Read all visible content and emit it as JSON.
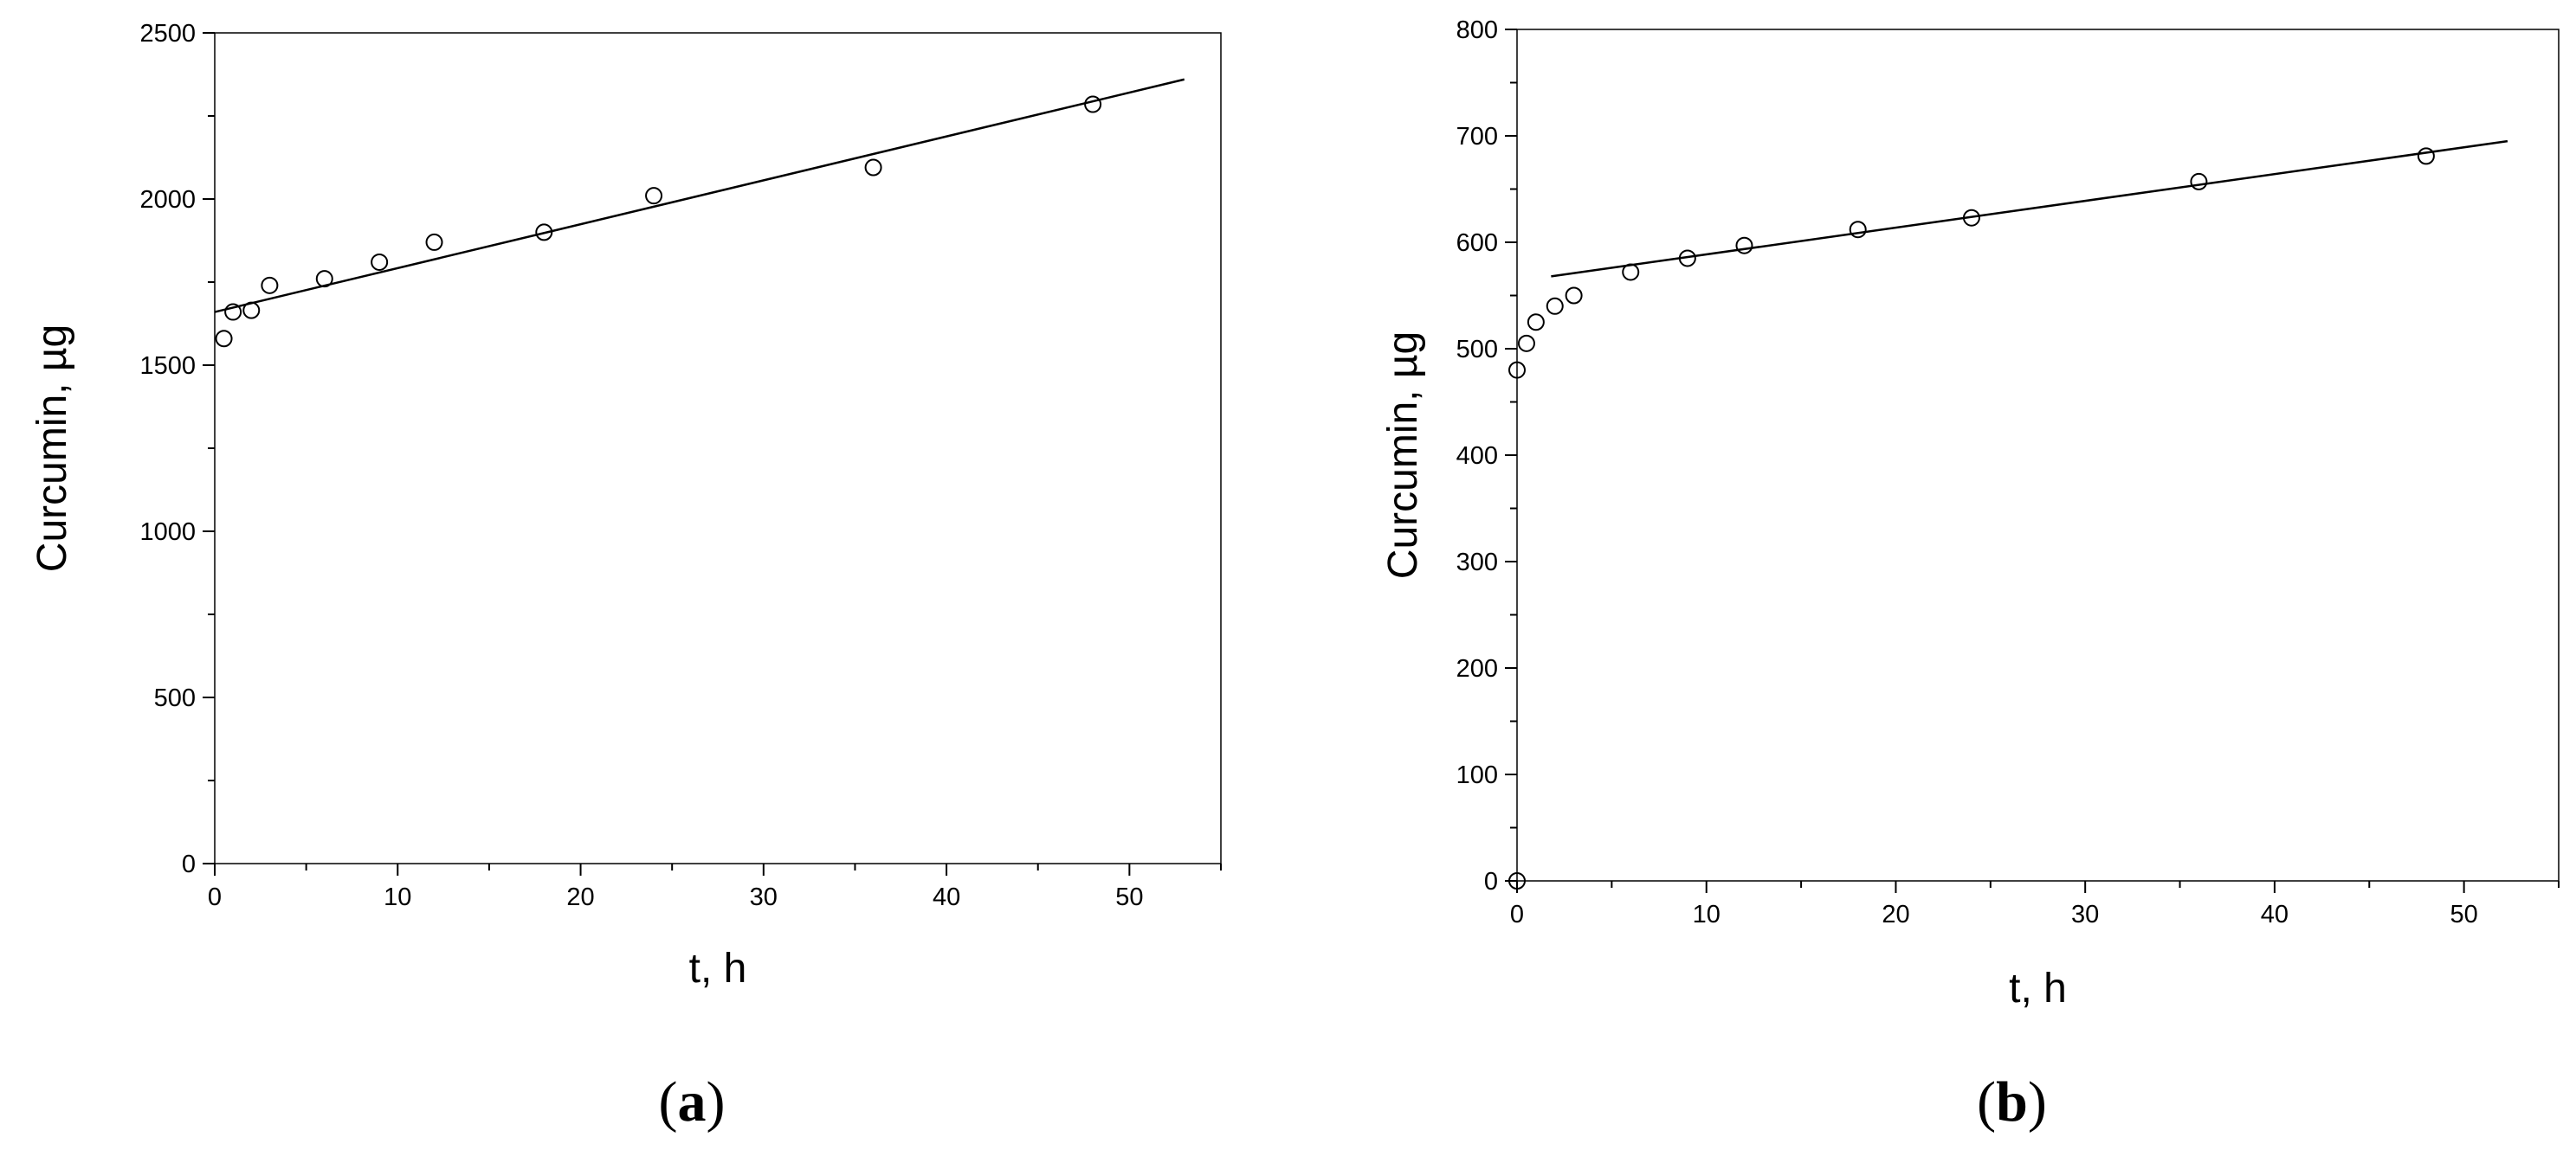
{
  "chart_data": [
    {
      "type": "scatter",
      "panel_label": {
        "open": "(",
        "letter": "a",
        "close": ")"
      },
      "xlabel": "t, h",
      "ylabel": "Curcumin, µg",
      "xlim": [
        0,
        55
      ],
      "ylim": [
        0,
        2500
      ],
      "xticks": [
        0,
        10,
        20,
        30,
        40,
        50
      ],
      "yticks": [
        0,
        500,
        1000,
        1500,
        2000,
        2500
      ],
      "series": [
        {
          "marker": "open-circle",
          "x": [
            0.5,
            1,
            2,
            3,
            6,
            9,
            12,
            18,
            24,
            36,
            48
          ],
          "y": [
            1580,
            1660,
            1665,
            1740,
            1760,
            1810,
            1870,
            1900,
            2010,
            2095,
            2285
          ]
        }
      ],
      "fit_lines": [
        {
          "x": [
            0,
            53
          ],
          "y": [
            1660,
            2360
          ]
        }
      ],
      "grid": false
    },
    {
      "type": "scatter",
      "panel_label": {
        "open": "(",
        "letter": "b",
        "close": ")"
      },
      "xlabel": "t, h",
      "ylabel": "Curcumin, µg",
      "xlim": [
        0,
        55
      ],
      "ylim": [
        0,
        800
      ],
      "xticks": [
        0,
        10,
        20,
        30,
        40,
        50
      ],
      "yticks": [
        0,
        100,
        200,
        300,
        400,
        500,
        600,
        700,
        800
      ],
      "series": [
        {
          "marker": "open-circle",
          "x": [
            0,
            0,
            0.5,
            1,
            2,
            3,
            6,
            9,
            12,
            18,
            24,
            36,
            48
          ],
          "y": [
            0,
            480,
            505,
            525,
            540,
            550,
            572,
            585,
            597,
            612,
            623,
            657,
            681
          ]
        }
      ],
      "fit_lines": [
        {
          "x": [
            1.8,
            52.3
          ],
          "y": [
            568,
            695
          ]
        }
      ],
      "grid": false
    }
  ]
}
